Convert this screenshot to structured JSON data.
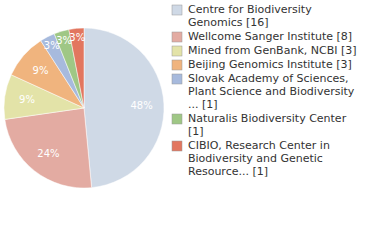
{
  "chart_data": {
    "type": "pie",
    "categories": [
      "Centre for Biodiversity Genomics [16]",
      "Wellcome Sanger Institute [8]",
      "Mined from GenBank, NCBI [3]",
      "Beijing Genomics Institute [3]",
      "Slovak Academy of Sciences, Plant Science and Biodiversity ... [1]",
      "Naturalis Biodiversity Center [1]",
      "CIBIO, Research Center in Biodiversity and Genetic Resource... [1]"
    ],
    "values": [
      48,
      24,
      9,
      9,
      3,
      3,
      3
    ],
    "value_labels": [
      "48%",
      "24%",
      "9%",
      "9%",
      "3%",
      "3%",
      "3%"
    ],
    "colors": [
      "#cfd9e6",
      "#e3aba2",
      "#e3e3a8",
      "#f0b47e",
      "#a7badd",
      "#9fc785",
      "#e2765f"
    ],
    "data_labels": true,
    "legend": "right"
  }
}
